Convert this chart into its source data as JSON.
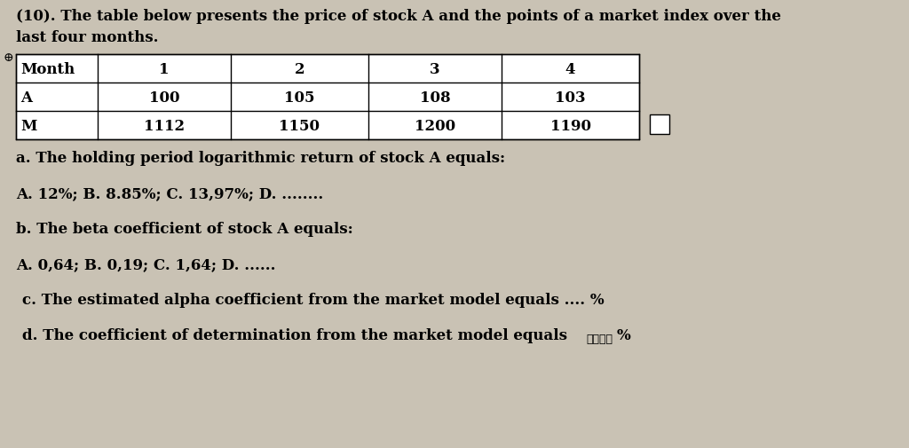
{
  "background_color": "#c9c2b4",
  "title_line1": "(10). The table below presents the price of stock A and the points of a market index over the",
  "title_line2": "last four months.",
  "table_headers": [
    "Month",
    "1",
    "2",
    "3",
    "4"
  ],
  "table_row_A": [
    "A",
    "100",
    "105",
    "108",
    "103"
  ],
  "table_row_M": [
    "M",
    "1112",
    "1150",
    "1200",
    "1190"
  ],
  "question_a_label": "a. The holding period logarithmic return of stock A equals:",
  "question_a_options": "A. 12%; B. 8.85%; C. 13,97%; D. ........",
  "question_b_label": "b. The beta coefficient of stock A equals:",
  "question_b_options": "A. 0,64; B. 0,19; C. 1,64; D. ......",
  "question_c": "c. The estimated alpha coefficient from the market model equals .... %",
  "question_d_main": "d. The coefficient of determination from the market model equals ",
  "question_d_wavy": "∿∿∿∿",
  "question_d_pct": "%",
  "font_size_title": 12,
  "font_size_body": 12,
  "font_size_table": 12
}
